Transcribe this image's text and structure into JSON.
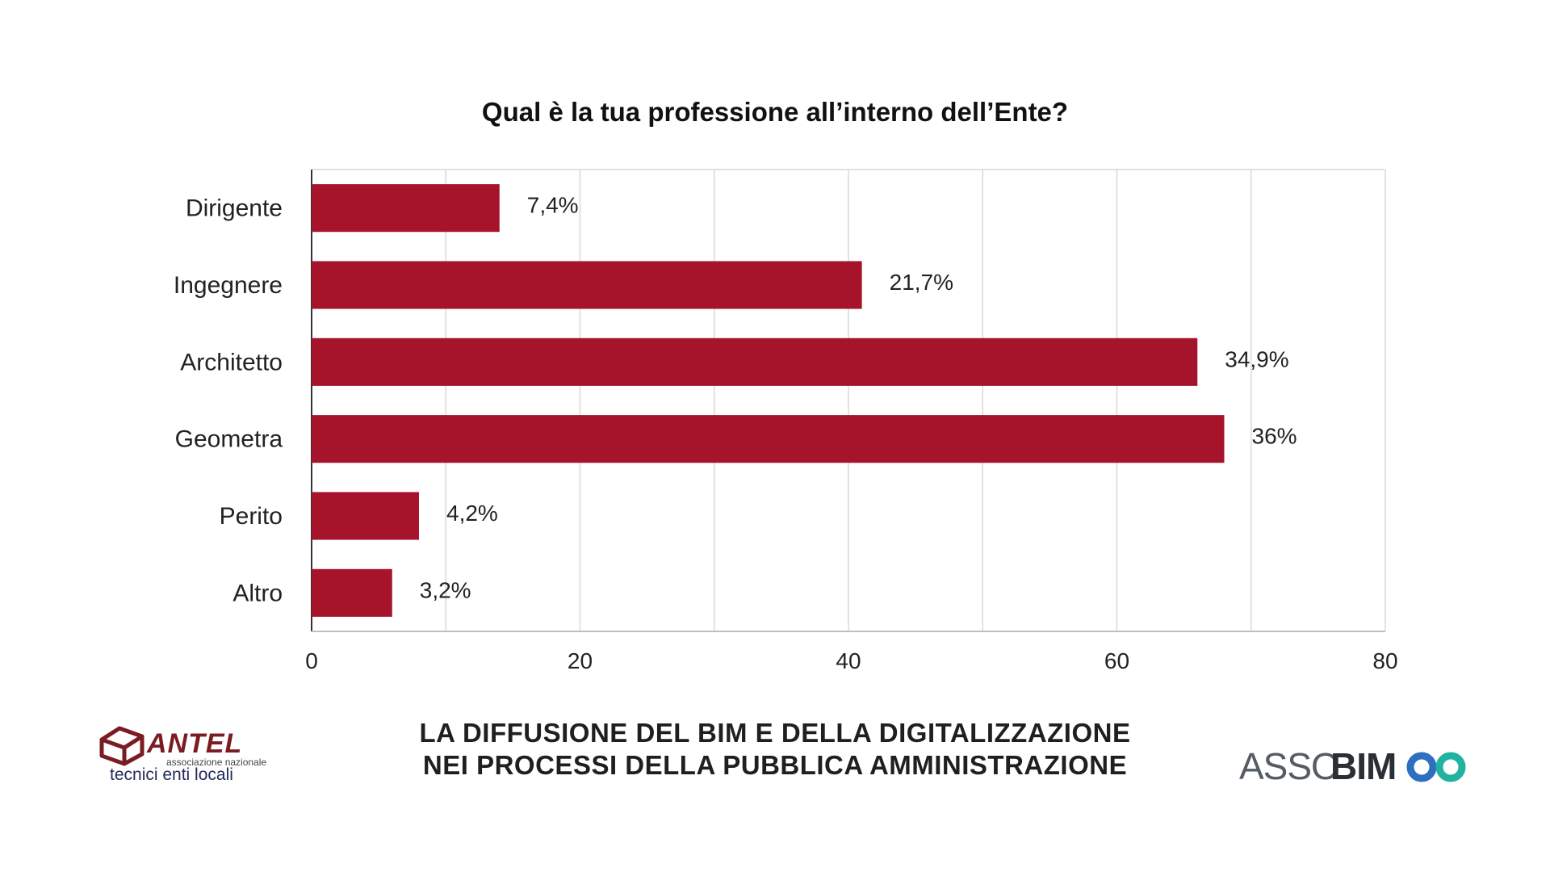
{
  "chart_data": {
    "type": "bar",
    "orientation": "horizontal",
    "title": "Qual è la tua professione all’interno dell’Ente?",
    "categories": [
      "Dirigente",
      "Ingegnere",
      "Architetto",
      "Geometra",
      "Perito",
      "Altro"
    ],
    "values": [
      14,
      41,
      66,
      68,
      8,
      6
    ],
    "value_labels": [
      "7,4%",
      "21,7%",
      "34,9%",
      "36%",
      "4,2%",
      "3,2%"
    ],
    "xlim": [
      0,
      80
    ],
    "xticks": [
      0,
      20,
      40,
      60,
      80
    ],
    "gridlines_every": 10,
    "grid": true,
    "bar_color": "#a6142b",
    "grid_color": "#d9d9d9",
    "axis_color": "#333333"
  },
  "footer": {
    "line1": "LA DIFFUSIONE DEL BIM E DELLA DIGITALIZZAZIONE",
    "line2": "NEI PROCESSI DELLA PUBBLICA AMMINISTRAZIONE"
  },
  "logos": {
    "antel": {
      "name": "ANTEL",
      "subtitle": "associazione nazionale",
      "subtitle2": "tecnici enti locali",
      "color": "#7b1c22"
    },
    "assobim": {
      "prefix": "ASSO",
      "suffix": "BIM",
      "accent_blue": "#2f6fc0",
      "accent_teal": "#1fb3a0"
    }
  }
}
